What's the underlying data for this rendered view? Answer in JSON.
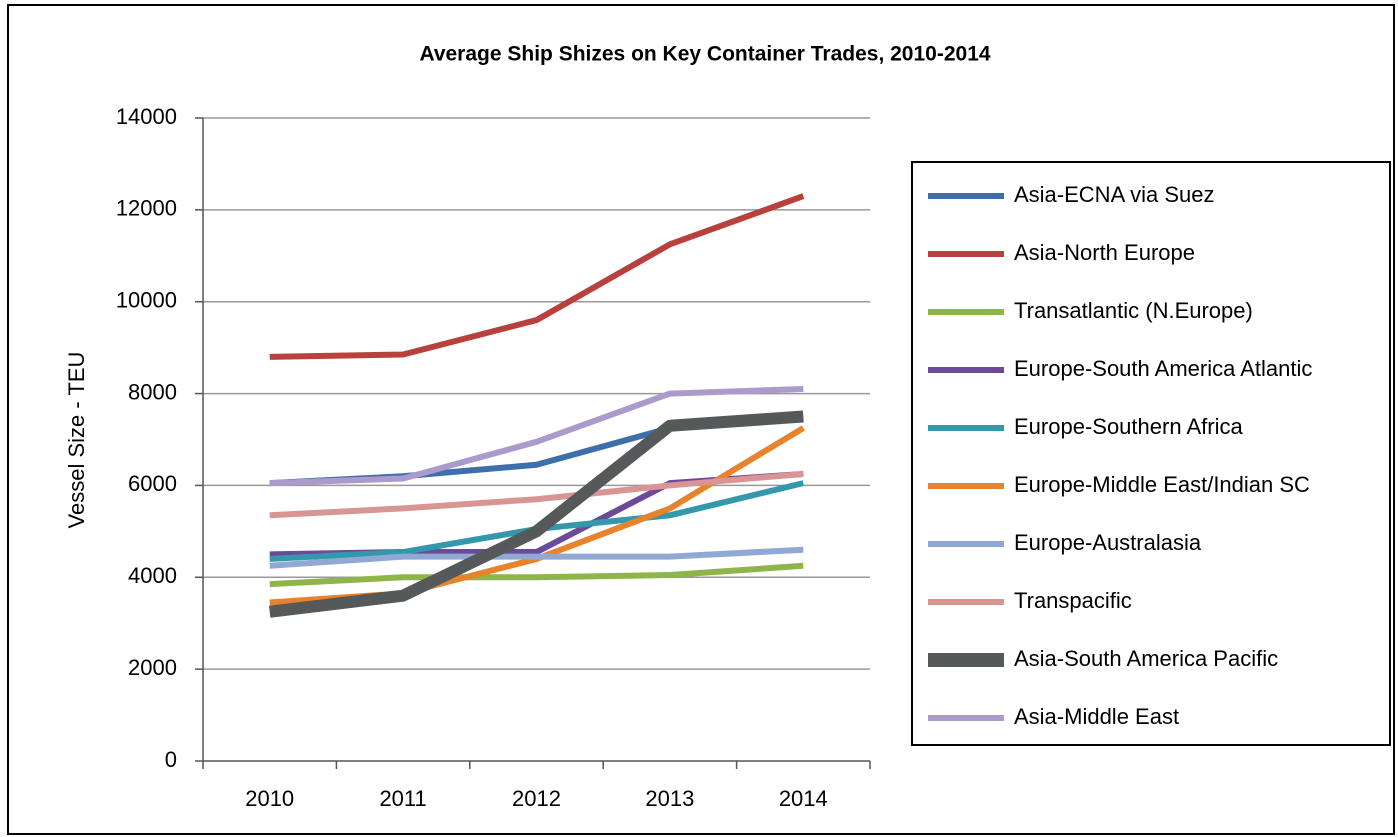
{
  "chart_data": {
    "type": "line",
    "title": "Average Ship Shizes on Key Container Trades, 2010-2014",
    "y_label": "Vessel Size - TEU",
    "categories": [
      "2010",
      "2011",
      "2012",
      "2013",
      "2014"
    ],
    "ylim": [
      0,
      14000
    ],
    "yticks": [
      0,
      2000,
      4000,
      6000,
      8000,
      10000,
      12000,
      14000
    ],
    "grid": true,
    "legend": "right",
    "series": [
      {
        "name": "Asia-ECNA via Suez",
        "color": "#3d6fad",
        "values": [
          6050,
          6200,
          6450,
          7250,
          7500
        ]
      },
      {
        "name": "Asia-North Europe",
        "color": "#b8413d",
        "values": [
          8800,
          8850,
          9600,
          11250,
          12300
        ]
      },
      {
        "name": "Transatlantic (N.Europe)",
        "color": "#8db54a",
        "values": [
          3850,
          4000,
          4000,
          4050,
          4250
        ]
      },
      {
        "name": "Europe-South America Atlantic",
        "color": "#6a4a99",
        "values": [
          4500,
          4550,
          4550,
          6050,
          6250
        ]
      },
      {
        "name": "Europe-Southern Africa",
        "color": "#3398ac",
        "values": [
          4400,
          4550,
          5050,
          5350,
          6050
        ]
      },
      {
        "name": "Europe-Middle East/Indian SC",
        "color": "#e8832d",
        "values": [
          3450,
          3650,
          4400,
          5500,
          7250
        ]
      },
      {
        "name": "Europe-Australasia",
        "color": "#8fa9d4",
        "values": [
          4250,
          4450,
          4450,
          4450,
          4600
        ]
      },
      {
        "name": "Transpacific",
        "color": "#d99593",
        "values": [
          5350,
          5500,
          5700,
          6000,
          6250
        ]
      },
      {
        "name": "Asia-South America Pacific",
        "color": "#555959",
        "values": [
          3250,
          3600,
          5000,
          7300,
          7500
        ]
      },
      {
        "name": "Asia-Middle East",
        "color": "#ab9bcc",
        "values": [
          6050,
          6150,
          6950,
          8000,
          8100
        ]
      }
    ]
  }
}
